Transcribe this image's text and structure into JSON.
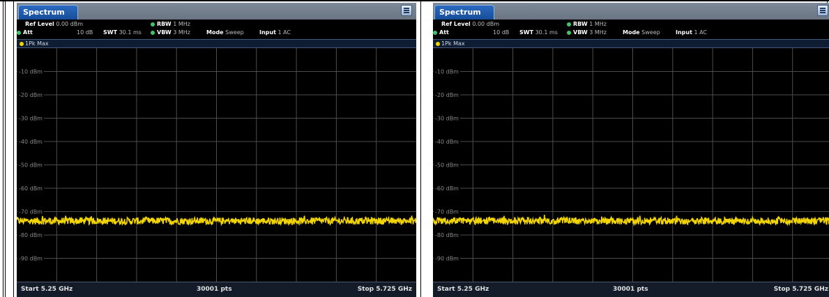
{
  "colors": {
    "trace": "#f2d400",
    "background": "#000000",
    "grid": "#4d4d4d",
    "tab": "#1d5cb4"
  },
  "panels": [
    {
      "tab": "Spectrum",
      "ref_level_label": "Ref Level",
      "ref_level_value": "0.00 dBm",
      "att_label": "Att",
      "att_value": "10 dB",
      "swt_label": "SWT",
      "swt_value": "30.1 ms",
      "rbw_label": "RBW",
      "rbw_value": "1 MHz",
      "vbw_label": "VBW",
      "vbw_value": "3 MHz",
      "mode_label": "Mode",
      "mode_value": "Sweep",
      "input_label": "Input",
      "input_value": "1 AC",
      "trace": "1Pk Max",
      "start": "Start 5.25 GHz",
      "points": "30001 pts",
      "stop": "Stop 5.725 GHz"
    },
    {
      "tab": "Spectrum",
      "ref_level_label": "Ref Level",
      "ref_level_value": "0.00 dBm",
      "att_label": "Att",
      "att_value": "10 dB",
      "swt_label": "SWT",
      "swt_value": "30.1 ms",
      "rbw_label": "RBW",
      "rbw_value": "1 MHz",
      "vbw_label": "VBW",
      "vbw_value": "3 MHz",
      "mode_label": "Mode",
      "mode_value": "Sweep",
      "input_label": "Input",
      "input_value": "1 AC",
      "trace": "1Pk Max",
      "start": "Start 5.25 GHz",
      "points": "30001 pts",
      "stop": "Stop 5.725 GHz"
    }
  ],
  "chart_data": [
    {
      "type": "line",
      "ylim": [
        -100,
        0
      ],
      "xlim": [
        5.25,
        5.725
      ],
      "grid": true,
      "y_ticks": [
        -10,
        -20,
        -30,
        -40,
        -50,
        -60,
        -70,
        -80,
        -90
      ],
      "y_tick_labels": [
        "-10 dBm",
        "-20 dBm",
        "-30 dBm",
        "-40 dBm",
        "-50 dBm",
        "-60 dBm",
        "-70 dBm",
        "-80 dBm",
        "-90 dBm"
      ],
      "series": [
        {
          "x_start": 5.25,
          "x_stop": 5.725,
          "noise_floor_dbm": -74,
          "noise_spread_db": 3
        }
      ]
    },
    {
      "type": "line",
      "ylim": [
        -100,
        0
      ],
      "xlim": [
        5.25,
        5.725
      ],
      "grid": true,
      "y_ticks": [
        -10,
        -20,
        -30,
        -40,
        -50,
        -60,
        -70,
        -80,
        -90
      ],
      "y_tick_labels": [
        "-10 dBm",
        "-20 dBm",
        "-30 dBm",
        "-40 dBm",
        "-50 dBm",
        "-60 dBm",
        "-70 dBm",
        "-80 dBm",
        "-90 dBm"
      ],
      "series": [
        {
          "x_start": 5.25,
          "x_stop": 5.725,
          "noise_floor_dbm": -74,
          "noise_spread_db": 3
        }
      ]
    }
  ]
}
